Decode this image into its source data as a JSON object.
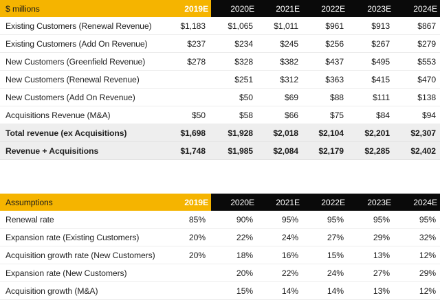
{
  "revenue": {
    "header_label": "$ millions",
    "years": [
      "2019E",
      "2020E",
      "2021E",
      "2022E",
      "2023E",
      "2024E"
    ],
    "rows": [
      {
        "label": "Existing Customers (Renewal Revenue)",
        "marker": "",
        "values": [
          "$1,183",
          "$1,065",
          "$1,011",
          "$961",
          "$913",
          "$867"
        ]
      },
      {
        "label": "Existing Customers  (Add On Revenue)",
        "marker": "",
        "values": [
          "$237",
          "$234",
          "$245",
          "$256",
          "$267",
          "$279"
        ]
      },
      {
        "label": "New Customers (Greenfield Revenue)",
        "marker": "",
        "values": [
          "$278",
          "$328",
          "$382",
          "$437",
          "$495",
          "$553"
        ]
      },
      {
        "label": "New Customers (Renewal Revenue)",
        "marker": "-",
        "values": [
          "",
          "$251",
          "$312",
          "$363",
          "$415",
          "$470"
        ]
      },
      {
        "label": "New Customers (Add On Revenue)",
        "marker": "",
        "values": [
          "",
          "$50",
          "$69",
          "$88",
          "$111",
          "$138"
        ]
      },
      {
        "label": "Acquisitions Revenue (M&A)",
        "marker": "",
        "values": [
          "$50",
          "$58",
          "$66",
          "$75",
          "$84",
          "$94"
        ]
      }
    ],
    "totals": [
      {
        "label": "Total revenue (ex Acquisitions)",
        "values": [
          "$1,698",
          "$1,928",
          "$2,018",
          "$2,104",
          "$2,201",
          "$2,307"
        ]
      },
      {
        "label": "Revenue + Acquisitions",
        "values": [
          "$1,748",
          "$1,985",
          "$2,084",
          "$2,179",
          "$2,285",
          "$2,402"
        ]
      }
    ]
  },
  "assumptions": {
    "header_label": "Assumptions",
    "years": [
      "2019E",
      "2020E",
      "2021E",
      "2022E",
      "2023E",
      "2024E"
    ],
    "rows": [
      {
        "label": "Renewal rate",
        "values": [
          "85%",
          "90%",
          "95%",
          "95%",
          "95%",
          "95%"
        ]
      },
      {
        "label": "Expansion rate (Existing Customers)",
        "values": [
          "20%",
          "22%",
          "24%",
          "27%",
          "29%",
          "32%"
        ]
      },
      {
        "label": "Acquisition growth rate (New Customers)",
        "values": [
          "20%",
          "18%",
          "16%",
          "15%",
          "13%",
          "12%"
        ]
      },
      {
        "label": "Expansion rate (New Customers)",
        "values": [
          "",
          "20%",
          "22%",
          "24%",
          "27%",
          "29%"
        ]
      },
      {
        "label": "Acquisition growth (M&A)",
        "values": [
          "",
          "15%",
          "14%",
          "14%",
          "13%",
          "12%"
        ]
      }
    ]
  },
  "colors": {
    "accent": "#f5b400",
    "header_dark": "#0a0a0a",
    "total_row": "#eeeeee"
  }
}
